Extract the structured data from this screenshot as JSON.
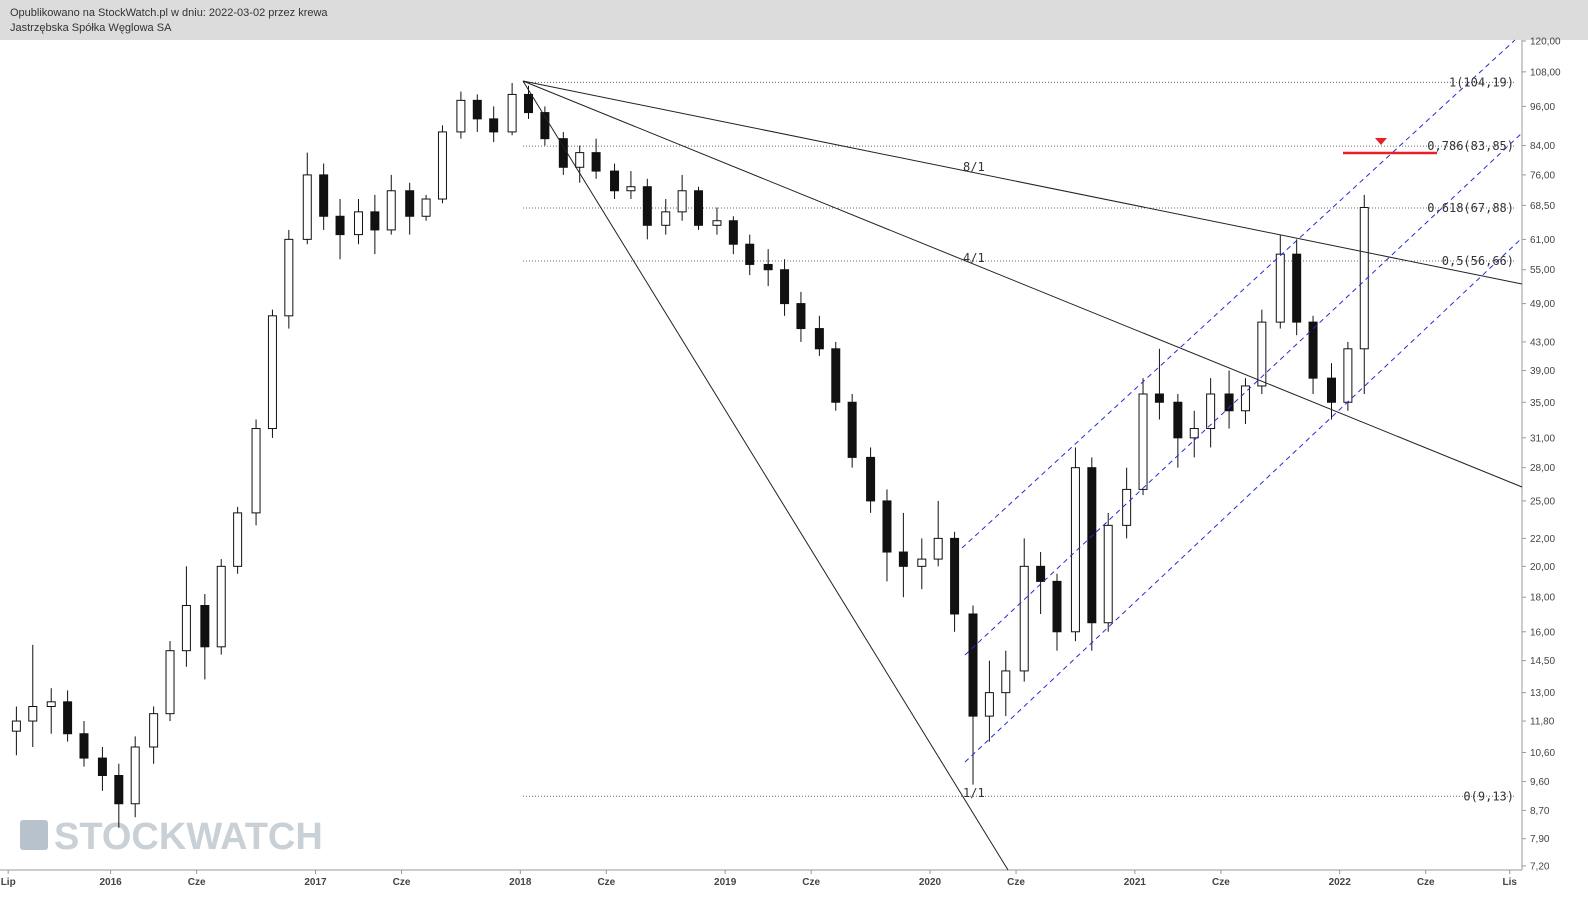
{
  "header": {
    "line1": "Opublikowano na StockWatch.pl w dniu: 2022-03-02 przez krewa",
    "line2": "Jastrzębska Spółka Węglowa SA"
  },
  "watermark": "STOCKWATCH",
  "chart_data": {
    "type": "candlestick",
    "log_scale": true,
    "xlim": [
      2015.46,
      2022.89
    ],
    "ylim": [
      7.1,
      120.4
    ],
    "xticks": [
      {
        "value": 2015.5,
        "label": "Lip"
      },
      2016,
      {
        "value": 2016.42,
        "label": "Cze"
      },
      2017,
      {
        "value": 2017.42,
        "label": "Cze"
      },
      2018,
      {
        "value": 2018.42,
        "label": "Cze"
      },
      2019,
      {
        "value": 2019.42,
        "label": "Cze"
      },
      2020,
      {
        "value": 2020.42,
        "label": "Cze"
      },
      2021,
      {
        "value": 2021.42,
        "label": "Cze"
      },
      2022,
      {
        "value": 2022.42,
        "label": "Cze"
      },
      {
        "value": 2022.83,
        "label": "Lis"
      }
    ],
    "yticks": [
      {
        "value": 7.2,
        "label": "7,20"
      },
      {
        "value": 7.9,
        "label": "7,90"
      },
      {
        "value": 8.7,
        "label": "8,70"
      },
      {
        "value": 9.6,
        "label": "9,60"
      },
      {
        "value": 10.6,
        "label": "10,60"
      },
      {
        "value": 11.8,
        "label": "11,80"
      },
      {
        "value": 13,
        "label": "13,00"
      },
      {
        "value": 14.5,
        "label": "14,50"
      },
      {
        "value": 16,
        "label": "16,00"
      },
      {
        "value": 18,
        "label": "18,00"
      },
      {
        "value": 20,
        "label": "20,00"
      },
      {
        "value": 22,
        "label": "22,00"
      },
      {
        "value": 25,
        "label": "25,00"
      },
      {
        "value": 28,
        "label": "28,00"
      },
      {
        "value": 31,
        "label": "31,00"
      },
      {
        "value": 35,
        "label": "35,00"
      },
      {
        "value": 39,
        "label": "39,00"
      },
      {
        "value": 43,
        "label": "43,00"
      },
      {
        "value": 49,
        "label": "49,00"
      },
      {
        "value": 55,
        "label": "55,00"
      },
      {
        "value": 61,
        "label": "61,00"
      },
      {
        "value": 68.5,
        "label": "68,50"
      },
      {
        "value": 76,
        "label": "76,00"
      },
      {
        "value": 84,
        "label": "84,00"
      },
      {
        "value": 96,
        "label": "96,00"
      },
      {
        "value": 108,
        "label": "108,00"
      },
      {
        "value": 120,
        "label": "120,00"
      }
    ],
    "levels": [
      {
        "value": 104.19,
        "label": "1(104,19)"
      },
      {
        "value": 83.85,
        "label": "0,786(83,85)"
      },
      {
        "value": 67.88,
        "label": "0,618(67,88)"
      },
      {
        "value": 56.66,
        "label": "0,5(56,66)"
      },
      {
        "value": 9.13,
        "label": "0(9,13)"
      }
    ],
    "fan_labels": [
      "8/1",
      "4/1",
      "1/1"
    ],
    "ohlc": {
      "x": [
        2015.54,
        2015.62,
        2015.71,
        2015.79,
        2015.87,
        2015.96,
        2016.04,
        2016.12,
        2016.21,
        2016.29,
        2016.37,
        2016.46,
        2016.54,
        2016.62,
        2016.71,
        2016.79,
        2016.87,
        2016.96,
        2017.04,
        2017.12,
        2017.21,
        2017.29,
        2017.37,
        2017.46,
        2017.54,
        2017.62,
        2017.71,
        2017.79,
        2017.87,
        2017.96,
        2018.04,
        2018.12,
        2018.21,
        2018.29,
        2018.37,
        2018.46,
        2018.54,
        2018.62,
        2018.71,
        2018.79,
        2018.87,
        2018.96,
        2019.04,
        2019.12,
        2019.21,
        2019.29,
        2019.37,
        2019.46,
        2019.54,
        2019.62,
        2019.71,
        2019.79,
        2019.87,
        2019.96,
        2020.04,
        2020.12,
        2020.21,
        2020.29,
        2020.37,
        2020.46,
        2020.54,
        2020.62,
        2020.71,
        2020.79,
        2020.87,
        2020.96,
        2021.04,
        2021.12,
        2021.21,
        2021.29,
        2021.37,
        2021.46,
        2021.54,
        2021.62,
        2021.71,
        2021.79,
        2021.87,
        2021.96,
        2022.04,
        2022.12
      ],
      "open": [
        11.4,
        11.8,
        12.4,
        12.6,
        11.3,
        10.4,
        9.8,
        8.9,
        10.8,
        12.1,
        15,
        17.5,
        15.2,
        20,
        24,
        32,
        47,
        61,
        76,
        66,
        62,
        67,
        63,
        72,
        66,
        70,
        88,
        98,
        92,
        88,
        100,
        94,
        86,
        78,
        82,
        77,
        72,
        73,
        64,
        67,
        72,
        64,
        65,
        60,
        56,
        55,
        49,
        45,
        42,
        35,
        29,
        25,
        21,
        20,
        20.5,
        22,
        17,
        12,
        13,
        14,
        20,
        19,
        16,
        28,
        16.5,
        23,
        26,
        36,
        35,
        31,
        32,
        36,
        34,
        37,
        46,
        58,
        46,
        38,
        35,
        42
      ],
      "high": [
        12.4,
        15.3,
        13.2,
        13.1,
        11.8,
        10.8,
        10.2,
        11.2,
        12.4,
        15.5,
        20,
        18.2,
        20.5,
        24.5,
        33,
        48,
        63,
        82,
        79,
        70,
        70,
        71,
        76,
        74,
        71,
        90,
        101,
        100,
        96,
        104,
        103,
        96,
        88,
        84,
        86,
        79,
        77,
        75,
        70,
        76,
        73,
        68,
        66,
        62,
        59,
        57,
        51,
        47,
        43,
        36,
        30,
        26,
        24,
        22,
        25,
        22.5,
        17.5,
        14.5,
        15,
        22,
        21,
        19.5,
        30,
        29,
        24,
        28,
        38,
        42,
        36,
        34,
        38,
        39,
        38,
        48,
        62,
        61,
        47,
        40,
        43,
        71
      ],
      "low": [
        10.5,
        10.8,
        11.3,
        11,
        10.1,
        9.3,
        8.2,
        8.5,
        10.2,
        11.8,
        14.2,
        13.6,
        14.8,
        19.5,
        23,
        31,
        45,
        60,
        63,
        57,
        60,
        58,
        62,
        62,
        65,
        69,
        86,
        88,
        85,
        87,
        92,
        84,
        76,
        74,
        75,
        70,
        70,
        61,
        62,
        65,
        63,
        62,
        58,
        54,
        52,
        47,
        43,
        41,
        34,
        28,
        24,
        19,
        18,
        18.5,
        20,
        16,
        9.5,
        11,
        12,
        13.5,
        17,
        15,
        15.5,
        15,
        16,
        22,
        25.5,
        33,
        28,
        29,
        30,
        32,
        32.5,
        36,
        45,
        44,
        36,
        33,
        34,
        36
      ],
      "close": [
        11.8,
        12.4,
        12.6,
        11.3,
        10.4,
        9.8,
        8.9,
        10.8,
        12.1,
        15,
        17.5,
        15.2,
        20,
        24,
        32,
        47,
        61,
        76,
        66,
        62,
        67,
        63,
        72,
        66,
        70,
        88,
        98,
        92,
        88,
        100,
        94,
        86,
        78,
        82,
        77,
        72,
        73,
        64,
        67,
        72,
        64,
        65,
        60,
        56,
        55,
        49,
        45,
        42,
        35,
        29,
        25,
        21,
        20,
        20.5,
        22,
        17,
        12,
        13,
        14,
        20,
        19,
        16,
        28,
        16.5,
        23,
        26,
        36,
        35,
        31,
        32,
        36,
        34,
        37,
        46,
        58,
        46,
        38,
        35,
        42,
        68
      ]
    }
  }
}
